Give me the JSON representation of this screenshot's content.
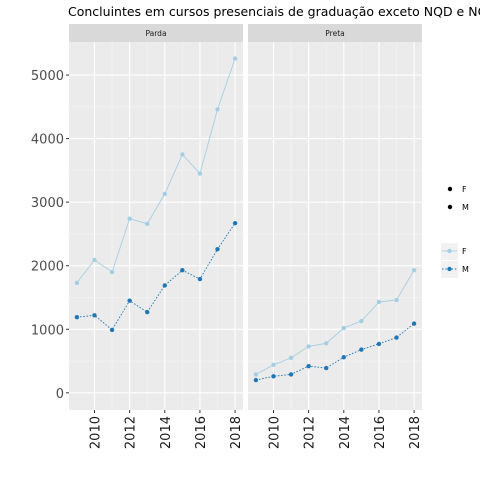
{
  "chart_data": {
    "type": "line",
    "title": "Concluintes em cursos presenciais de graduação exceto NQD e NQI",
    "xlabel": "",
    "ylabel": "",
    "panels": [
      "Parda",
      "Preta"
    ],
    "x": [
      2009,
      2010,
      2011,
      2012,
      2013,
      2014,
      2015,
      2016,
      2017,
      2018
    ],
    "x_ticks": [
      2010,
      2012,
      2014,
      2016,
      2018
    ],
    "x_tick_labels": [
      "2010",
      "2012",
      "2014",
      "2016",
      "2018"
    ],
    "y_ticks": [
      0,
      1000,
      2000,
      3000,
      4000,
      5000
    ],
    "y_tick_labels": [
      "0",
      "1000",
      "2000",
      "3000",
      "4000",
      "5000"
    ],
    "xlim": [
      2008.55,
      2018.45
    ],
    "ylim": [
      -270,
      5520
    ],
    "grid": true,
    "series": [
      {
        "name": "F",
        "panel": "Parda",
        "color": "#a6cee3",
        "linetype": "solid",
        "values": [
          1730,
          2090,
          1900,
          2740,
          2660,
          3130,
          3750,
          3450,
          4460,
          5260
        ]
      },
      {
        "name": "M",
        "panel": "Parda",
        "color": "#1f78b4",
        "linetype": "dotted",
        "values": [
          1190,
          1220,
          990,
          1450,
          1270,
          1690,
          1930,
          1790,
          2260,
          2670
        ]
      },
      {
        "name": "F",
        "panel": "Preta",
        "color": "#a6cee3",
        "linetype": "solid",
        "values": [
          290,
          440,
          550,
          730,
          780,
          1020,
          1130,
          1430,
          1460,
          1930
        ]
      },
      {
        "name": "M",
        "panel": "Preta",
        "color": "#1f78b4",
        "linetype": "dotted",
        "values": [
          200,
          260,
          290,
          420,
          390,
          560,
          680,
          770,
          870,
          1090
        ]
      }
    ],
    "legend_shape": {
      "entries": [
        "F",
        "M"
      ],
      "color": "#000000"
    },
    "legend_series": {
      "entries": [
        "F",
        "M"
      ],
      "colors": [
        "#a6cee3",
        "#1f78b4"
      ],
      "linetypes": [
        "solid",
        "dotted"
      ]
    },
    "legend_position": "right"
  }
}
